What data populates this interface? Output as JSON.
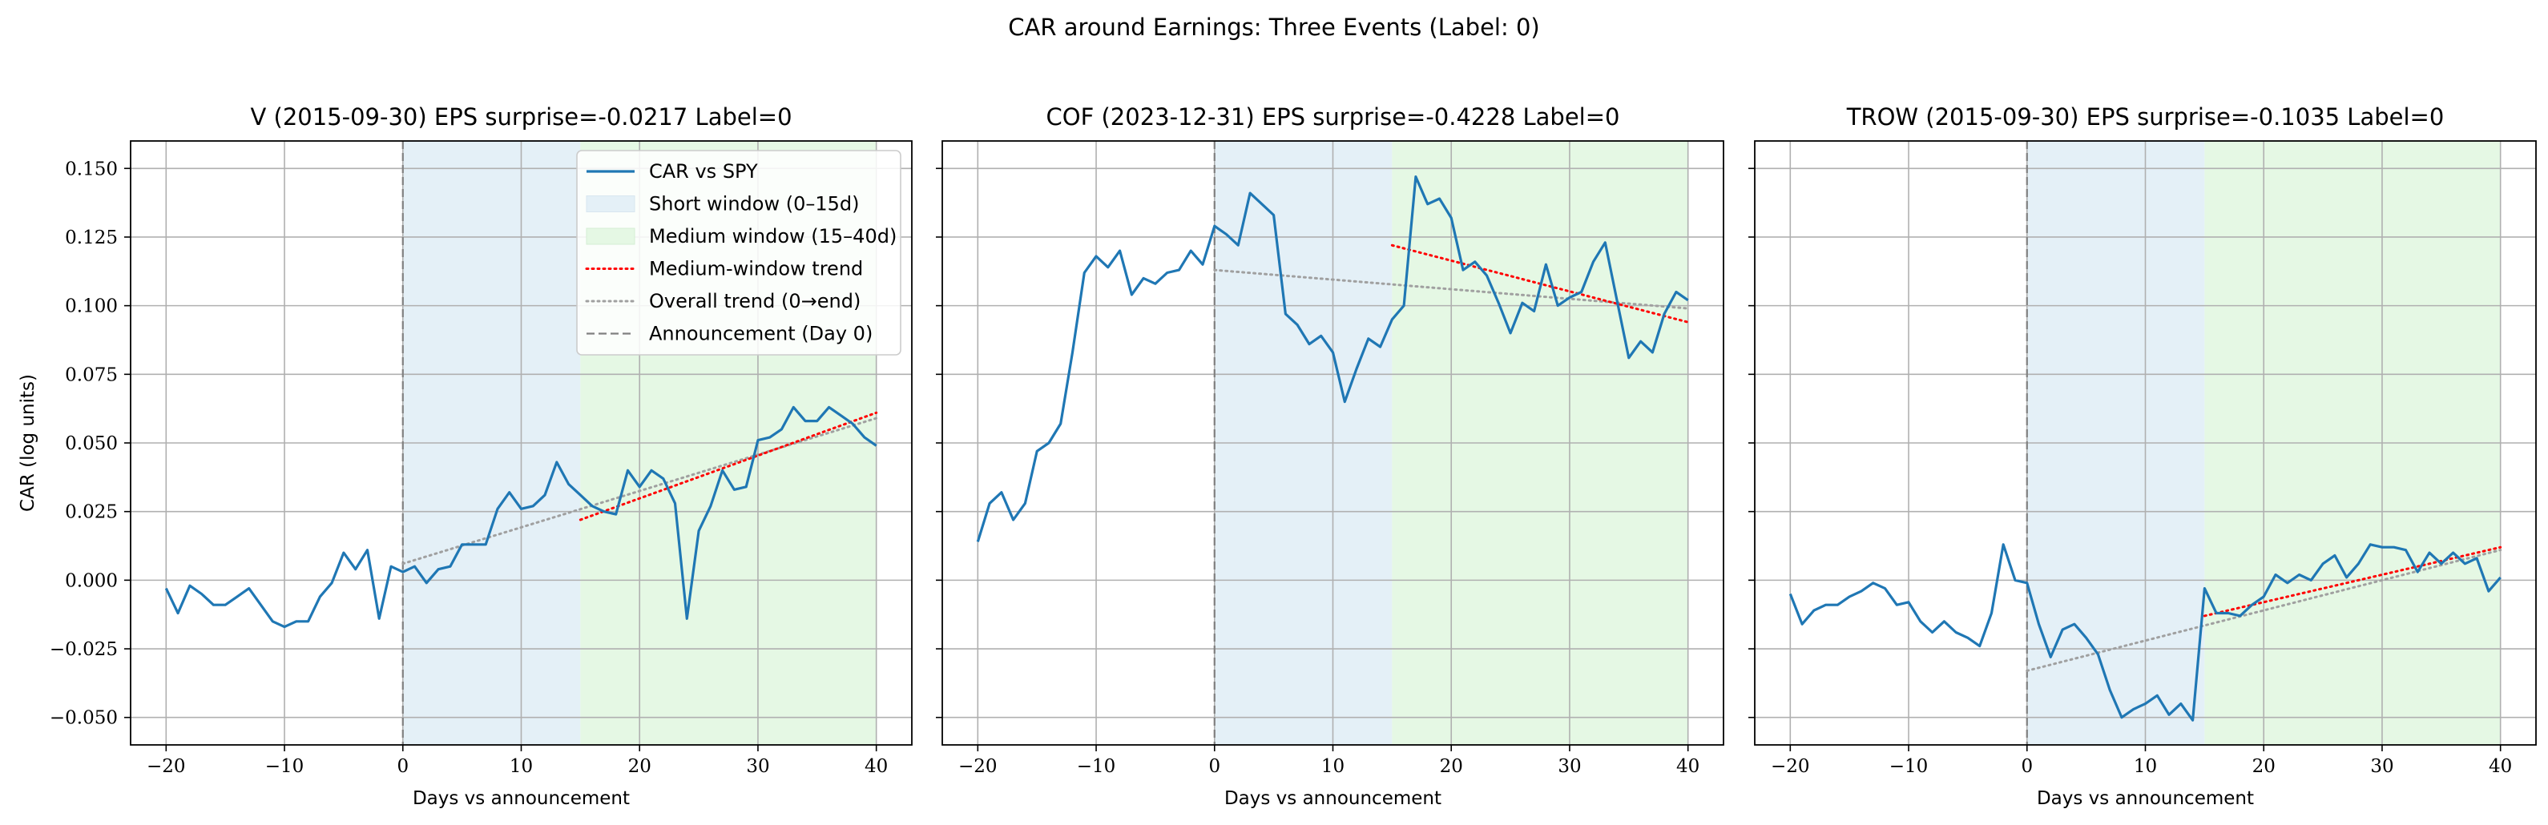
{
  "figure": {
    "suptitle": "CAR around Earnings: Three Events (Label: 0)"
  },
  "chart_data": [
    {
      "type": "line",
      "title": "V (2015-09-30) EPS surprise=-0.0217 Label=0",
      "xlabel": "Days vs announcement",
      "ylabel": "CAR (log units)",
      "xlim": [
        -23,
        43
      ],
      "ylim": [
        -0.06,
        0.16
      ],
      "xticks": [
        -20,
        -10,
        0,
        10,
        20,
        30,
        40
      ],
      "xtick_labels": [
        "−20",
        "−10",
        "0",
        "10",
        "20",
        "30",
        "40"
      ],
      "yticks": [
        -0.05,
        -0.025,
        0,
        0.025,
        0.05,
        0.075,
        0.1,
        0.125,
        0.15
      ],
      "ytick_labels": [
        "−0.050",
        "−0.025",
        "0.000",
        "0.025",
        "0.050",
        "0.075",
        "0.100",
        "0.125",
        "0.150"
      ],
      "grid": true,
      "legend_placement": "upper right",
      "x": [
        -20,
        -19,
        -18,
        -17,
        -16,
        -15,
        -14,
        -13,
        -12,
        -11,
        -10,
        -9,
        -8,
        -7,
        -6,
        -5,
        -4,
        -3,
        -2,
        -1,
        0,
        1,
        2,
        3,
        4,
        5,
        6,
        7,
        8,
        9,
        10,
        11,
        12,
        13,
        14,
        15,
        16,
        17,
        18,
        19,
        20,
        21,
        22,
        23,
        24,
        25,
        26,
        27,
        28,
        29,
        30,
        31,
        32,
        33,
        34,
        35,
        36,
        37,
        38,
        39,
        40
      ],
      "series": [
        {
          "name": "CAR vs SPY",
          "values": [
            -0.003,
            -0.012,
            -0.002,
            -0.005,
            -0.009,
            -0.009,
            -0.006,
            -0.003,
            -0.009,
            -0.015,
            -0.017,
            -0.015,
            -0.015,
            -0.006,
            -0.001,
            0.01,
            0.004,
            0.011,
            -0.014,
            0.005,
            0.003,
            0.005,
            -0.001,
            0.004,
            0.005,
            0.013,
            0.013,
            0.013,
            0.026,
            0.032,
            0.026,
            0.027,
            0.031,
            0.043,
            0.035,
            0.031,
            0.027,
            0.025,
            0.024,
            0.04,
            0.034,
            0.04,
            0.037,
            0.028,
            -0.014,
            0.018,
            0.027,
            0.04,
            0.033,
            0.034,
            0.051,
            0.052,
            0.055,
            0.063,
            0.058,
            0.058,
            0.063,
            0.06,
            0.057,
            0.052,
            0.049
          ]
        }
      ],
      "windows": {
        "short": [
          0,
          15
        ],
        "medium": [
          15,
          40
        ]
      },
      "medium_trend": {
        "x": [
          15,
          40
        ],
        "y": [
          0.022,
          0.061
        ]
      },
      "overall_trend": {
        "x": [
          0,
          40
        ],
        "y": [
          0.006,
          0.059
        ]
      },
      "announcement_day": 0,
      "legend": [
        {
          "key": "car",
          "label": "CAR vs SPY"
        },
        {
          "key": "short",
          "label": "Short window (0–15d)"
        },
        {
          "key": "medium",
          "label": "Medium window (15–40d)"
        },
        {
          "key": "mtrend",
          "label": "Medium-window trend"
        },
        {
          "key": "otrend",
          "label": "Overall trend (0→end)"
        },
        {
          "key": "ann",
          "label": "Announcement (Day 0)"
        }
      ]
    },
    {
      "type": "line",
      "title": "COF (2023-12-31) EPS surprise=-0.4228 Label=0",
      "xlabel": "Days vs announcement",
      "ylabel": "",
      "xlim": [
        -23,
        43
      ],
      "ylim": [
        -0.06,
        0.16
      ],
      "xticks": [
        -20,
        -10,
        0,
        10,
        20,
        30,
        40
      ],
      "xtick_labels": [
        "−20",
        "−10",
        "0",
        "10",
        "20",
        "30",
        "40"
      ],
      "yticks": [
        -0.05,
        -0.025,
        0,
        0.025,
        0.05,
        0.075,
        0.1,
        0.125,
        0.15
      ],
      "grid": true,
      "x": [
        -20,
        -19,
        -18,
        -17,
        -16,
        -15,
        -14,
        -13,
        -12,
        -11,
        -10,
        -9,
        -8,
        -7,
        -6,
        -5,
        -4,
        -3,
        -2,
        -1,
        0,
        1,
        2,
        3,
        4,
        5,
        6,
        7,
        8,
        9,
        10,
        11,
        12,
        13,
        14,
        15,
        16,
        17,
        18,
        19,
        20,
        21,
        22,
        23,
        24,
        25,
        26,
        27,
        28,
        29,
        30,
        31,
        32,
        33,
        34,
        35,
        36,
        37,
        38,
        39,
        40
      ],
      "series": [
        {
          "name": "CAR vs SPY",
          "values": [
            0.014,
            0.028,
            0.032,
            0.022,
            0.028,
            0.047,
            0.05,
            0.057,
            0.083,
            0.112,
            0.118,
            0.114,
            0.12,
            0.104,
            0.11,
            0.108,
            0.112,
            0.113,
            0.12,
            0.115,
            0.129,
            0.126,
            0.122,
            0.141,
            0.137,
            0.133,
            0.097,
            0.093,
            0.086,
            0.089,
            0.083,
            0.065,
            0.077,
            0.088,
            0.085,
            0.095,
            0.1,
            0.147,
            0.137,
            0.139,
            0.132,
            0.113,
            0.116,
            0.111,
            0.101,
            0.09,
            0.101,
            0.098,
            0.115,
            0.1,
            0.103,
            0.105,
            0.116,
            0.123,
            0.102,
            0.081,
            0.087,
            0.083,
            0.097,
            0.105,
            0.102
          ]
        }
      ],
      "windows": {
        "short": [
          0,
          15
        ],
        "medium": [
          15,
          40
        ]
      },
      "medium_trend": {
        "x": [
          15,
          40
        ],
        "y": [
          0.122,
          0.094
        ]
      },
      "overall_trend": {
        "x": [
          0,
          40
        ],
        "y": [
          0.113,
          0.099
        ]
      },
      "announcement_day": 0
    },
    {
      "type": "line",
      "title": "TROW (2015-09-30) EPS surprise=-0.1035 Label=0",
      "xlabel": "Days vs announcement",
      "ylabel": "",
      "xlim": [
        -23,
        43
      ],
      "ylim": [
        -0.06,
        0.16
      ],
      "xticks": [
        -20,
        -10,
        0,
        10,
        20,
        30,
        40
      ],
      "xtick_labels": [
        "−20",
        "−10",
        "0",
        "10",
        "20",
        "30",
        "40"
      ],
      "yticks": [
        -0.05,
        -0.025,
        0,
        0.025,
        0.05,
        0.075,
        0.1,
        0.125,
        0.15
      ],
      "grid": true,
      "x": [
        -20,
        -19,
        -18,
        -17,
        -16,
        -15,
        -14,
        -13,
        -12,
        -11,
        -10,
        -9,
        -8,
        -7,
        -6,
        -5,
        -4,
        -3,
        -2,
        -1,
        0,
        1,
        2,
        3,
        4,
        5,
        6,
        7,
        8,
        9,
        10,
        11,
        12,
        13,
        14,
        15,
        16,
        17,
        18,
        19,
        20,
        21,
        22,
        23,
        24,
        25,
        26,
        27,
        28,
        29,
        30,
        31,
        32,
        33,
        34,
        35,
        36,
        37,
        38,
        39,
        40
      ],
      "series": [
        {
          "name": "CAR vs SPY",
          "values": [
            -0.005,
            -0.016,
            -0.011,
            -0.009,
            -0.009,
            -0.006,
            -0.004,
            -0.001,
            -0.003,
            -0.009,
            -0.008,
            -0.015,
            -0.019,
            -0.015,
            -0.019,
            -0.021,
            -0.024,
            -0.012,
            0.013,
            0.0,
            -0.001,
            -0.016,
            -0.028,
            -0.018,
            -0.016,
            -0.021,
            -0.027,
            -0.04,
            -0.05,
            -0.047,
            -0.045,
            -0.042,
            -0.049,
            -0.045,
            -0.051,
            -0.003,
            -0.012,
            -0.012,
            -0.013,
            -0.009,
            -0.006,
            0.002,
            -0.001,
            0.002,
            0.0,
            0.006,
            0.009,
            0.001,
            0.006,
            0.013,
            0.012,
            0.012,
            0.011,
            0.003,
            0.01,
            0.006,
            0.01,
            0.006,
            0.008,
            -0.004,
            0.001
          ]
        }
      ],
      "windows": {
        "short": [
          0,
          15
        ],
        "medium": [
          15,
          40
        ]
      },
      "medium_trend": {
        "x": [
          15,
          40
        ],
        "y": [
          -0.013,
          0.012
        ]
      },
      "overall_trend": {
        "x": [
          0,
          40
        ],
        "y": [
          -0.033,
          0.011
        ]
      },
      "announcement_day": 0
    }
  ],
  "colors": {
    "line": "#1f77b4",
    "short_window": "#e4f0f7",
    "medium_window": "#e5f8e4",
    "medium_trend": "#ff0000",
    "overall_trend": "#a0a0a0",
    "announcement": "#808080",
    "grid": "#b0b0b0"
  }
}
